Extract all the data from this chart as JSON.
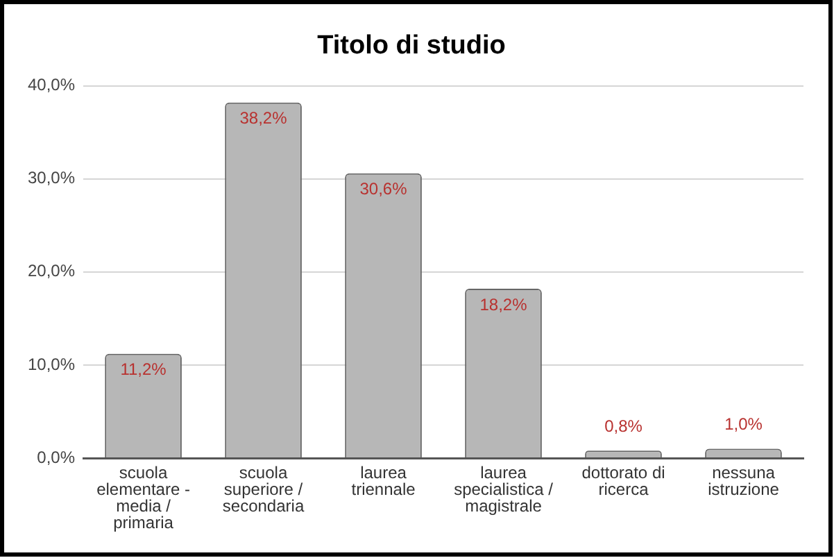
{
  "chart_data": {
    "type": "bar",
    "title": "Titolo di studio",
    "categories": [
      "scuola elementare - media / primaria",
      "scuola superiore / secondaria",
      "laurea triennale",
      "laurea specialistica / magistrale",
      "dottorato di ricerca",
      "nessuna istruzione"
    ],
    "values": [
      11.2,
      38.2,
      30.6,
      18.2,
      0.8,
      1.0
    ],
    "color": "#b7b7b7",
    "value_labels": [
      "11,2%",
      "38,2%",
      "30,6%",
      "18,2%",
      "0,8%",
      "1,0%"
    ],
    "ylim": [
      0,
      40
    ],
    "yticks": [
      {
        "value": 0,
        "label": "0,0%"
      },
      {
        "value": 10,
        "label": "10,0%"
      },
      {
        "value": 20,
        "label": "20,0%"
      },
      {
        "value": 30,
        "label": "30,0%"
      },
      {
        "value": 40,
        "label": "40,0%"
      }
    ],
    "grid": "y"
  }
}
